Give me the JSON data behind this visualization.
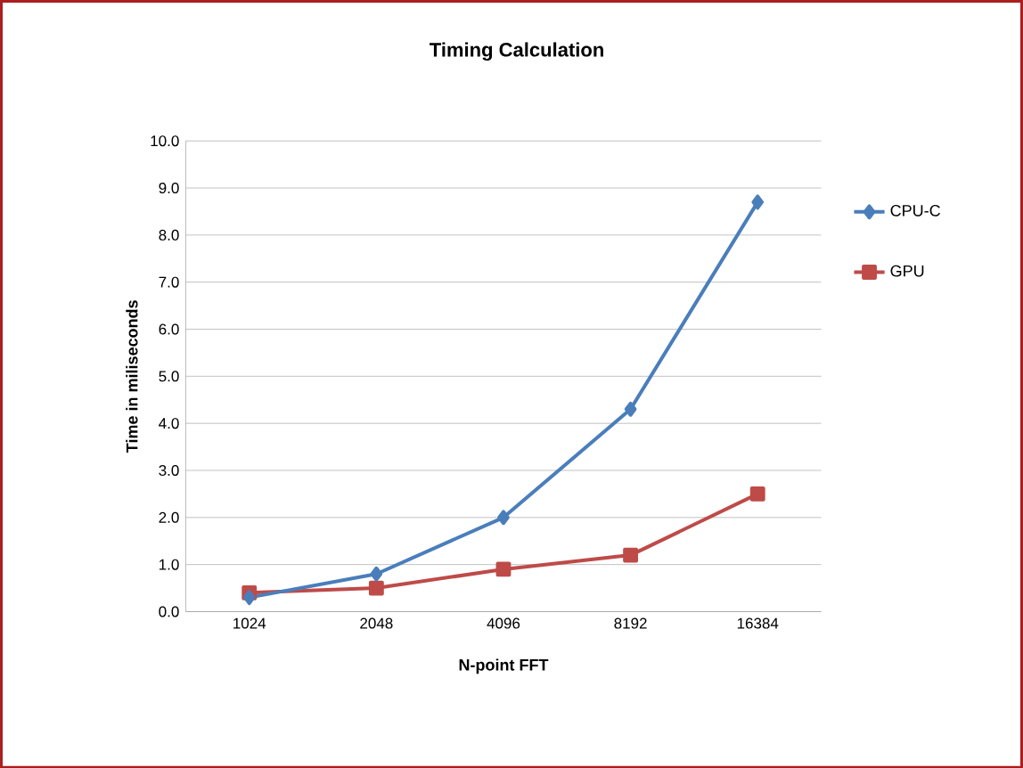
{
  "chart_data": {
    "type": "line",
    "title": "Timing Calculation",
    "xlabel": "N-point FFT",
    "ylabel": "Time in miliseconds",
    "categories": [
      "1024",
      "2048",
      "4096",
      "8192",
      "16384"
    ],
    "series": [
      {
        "name": "CPU-C",
        "color": "#4a7ebb",
        "marker": "diamond",
        "values": [
          0.3,
          0.8,
          2.0,
          4.3,
          8.7
        ]
      },
      {
        "name": "GPU",
        "color": "#be4b48",
        "marker": "square",
        "values": [
          0.4,
          0.5,
          0.9,
          1.2,
          2.5
        ]
      }
    ],
    "ylim": [
      0,
      10
    ],
    "yticks": [
      {
        "value": 0,
        "label": "0.0"
      },
      {
        "value": 1,
        "label": "1.0"
      },
      {
        "value": 2,
        "label": "2.0"
      },
      {
        "value": 3,
        "label": "3.0"
      },
      {
        "value": 4,
        "label": "4.0"
      },
      {
        "value": 5,
        "label": "5.0"
      },
      {
        "value": 6,
        "label": "6.0"
      },
      {
        "value": 7,
        "label": "7.0"
      },
      {
        "value": 8,
        "label": "8.0"
      },
      {
        "value": 9,
        "label": "9.0"
      },
      {
        "value": 10,
        "label": "10.0"
      }
    ],
    "grid": "y",
    "legend": "right",
    "line_style": "solid"
  }
}
